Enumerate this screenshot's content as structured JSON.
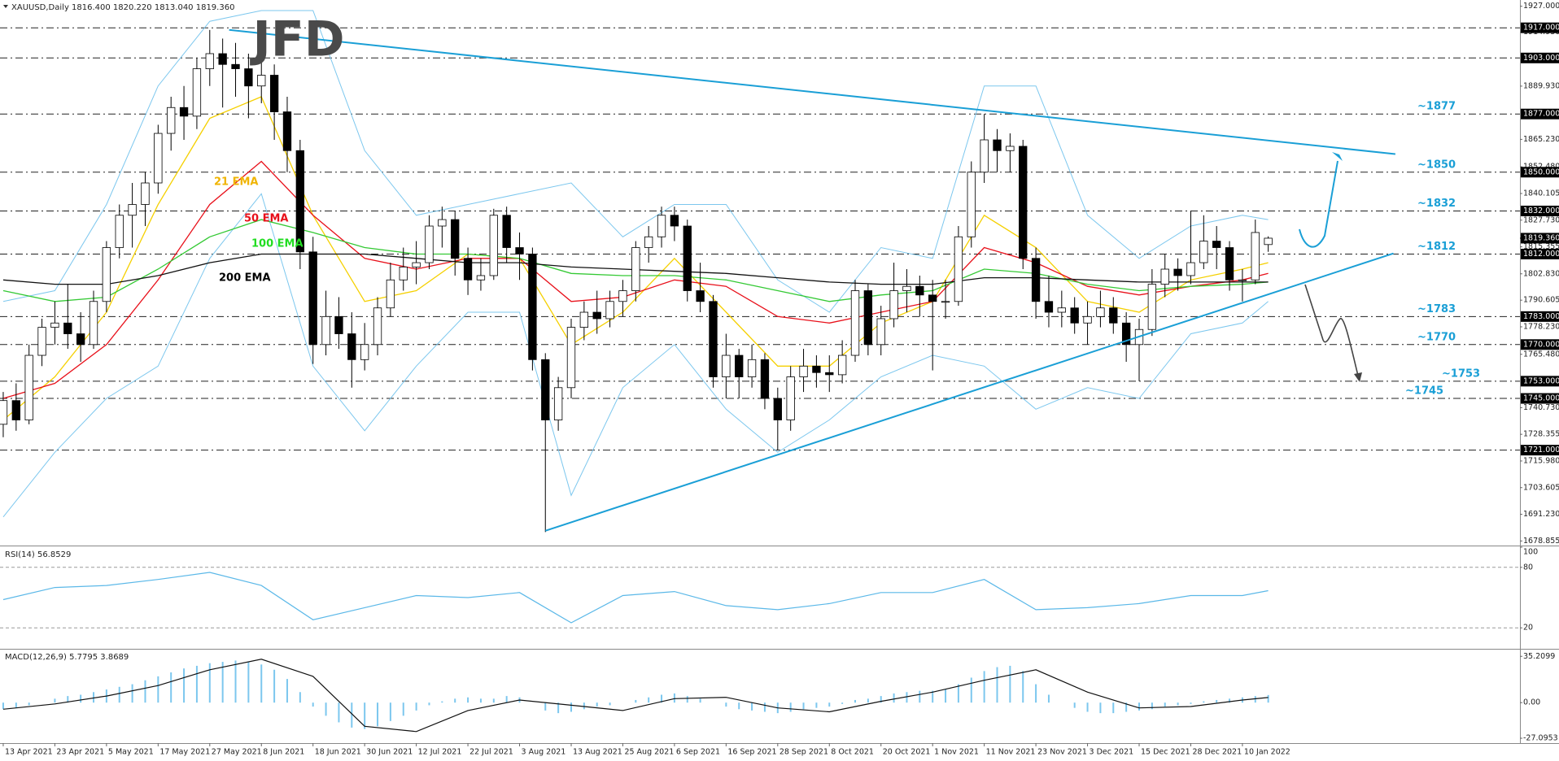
{
  "chart_data": {
    "type": "candlestick",
    "title": "XAUUSD,Daily  1816.400 1820.220 1813.040 1819.360",
    "watermark": "JFD",
    "up_color": "#ffffff",
    "down_color": "#000000",
    "xlim": [
      -0.5,
      235
    ],
    "xticks": [
      {
        "value": 0,
        "label": "13 Apr 2021"
      },
      {
        "value": 8,
        "label": "23 Apr 2021"
      },
      {
        "value": 16,
        "label": "5 May 2021"
      },
      {
        "value": 24,
        "label": "17 May 2021"
      },
      {
        "value": 32,
        "label": "27 May 2021"
      },
      {
        "value": 40,
        "label": "8 Jun 2021"
      },
      {
        "value": 48,
        "label": "18 Jun 2021"
      },
      {
        "value": 56,
        "label": "30 Jun 2021"
      },
      {
        "value": 64,
        "label": "12 Jul 2021"
      },
      {
        "value": 72,
        "label": "22 Jul 2021"
      },
      {
        "value": 80,
        "label": "3 Aug 2021"
      },
      {
        "value": 88,
        "label": "13 Aug 2021"
      },
      {
        "value": 96,
        "label": "25 Aug 2021"
      },
      {
        "value": 104,
        "label": "6 Sep 2021"
      },
      {
        "value": 112,
        "label": "16 Sep 2021"
      },
      {
        "value": 120,
        "label": "28 Sep 2021"
      },
      {
        "value": 128,
        "label": "8 Oct 2021"
      },
      {
        "value": 136,
        "label": "20 Oct 2021"
      },
      {
        "value": 144,
        "label": "1 Nov 2021"
      },
      {
        "value": 152,
        "label": "11 Nov 2021"
      },
      {
        "value": 160,
        "label": "23 Nov 2021"
      },
      {
        "value": 168,
        "label": "3 Dec 2021"
      },
      {
        "value": 176,
        "label": "15 Dec 2021"
      },
      {
        "value": 184,
        "label": "28 Dec 2021"
      },
      {
        "value": 192,
        "label": "10 Jan 2022"
      }
    ],
    "ylim": [
      1677.1,
      1929.9
    ],
    "yticks": [
      {
        "value": 1927,
        "label": "1927.000"
      },
      {
        "value": 1914.93,
        "label": "1914.930"
      },
      {
        "value": 1889.93,
        "label": "1889.930"
      },
      {
        "value": 1865.23,
        "label": "1865.230"
      },
      {
        "value": 1852.48,
        "label": "1852.480"
      },
      1840.105,
      {
        "value": 1827.73,
        "label": "1827.730"
      },
      1815.355,
      {
        "value": 1802.83,
        "label": "1802.830"
      },
      1790.605,
      {
        "value": 1778.23,
        "label": "1778.230"
      },
      {
        "value": 1765.48,
        "label": "1765.480"
      },
      {
        "value": 1740.73,
        "label": "1740.730"
      },
      1728.355,
      {
        "value": 1715.98,
        "label": "1715.980"
      },
      1703.605,
      {
        "value": 1691.23,
        "label": "1691.230"
      },
      1678.855
    ],
    "levels": [
      {
        "value": 1917,
        "label": "1917.000"
      },
      {
        "value": 1903,
        "label": "1903.000"
      },
      {
        "value": 1877,
        "label": "1877.000",
        "note": "~1877"
      },
      {
        "value": 1850,
        "label": "1850.000",
        "note": "~1850"
      },
      {
        "value": 1832,
        "label": "1832.000",
        "note": "~1832"
      },
      {
        "value": 1812,
        "label": "1812.000",
        "note": "~1812"
      },
      {
        "value": 1783,
        "label": "1783.000",
        "note": "~1783"
      },
      {
        "value": 1770,
        "label": "1770.000",
        "note": "~1770"
      },
      {
        "value": 1753,
        "label": "1753.000",
        "note": "~1753"
      },
      {
        "value": 1745,
        "label": "1745.000",
        "note": "~1745"
      },
      {
        "value": 1721,
        "label": "1721.000"
      }
    ],
    "current_price": {
      "value": 1819.36,
      "label": "1819.360"
    },
    "x": [
      0,
      2,
      4,
      6,
      8,
      10,
      12,
      14,
      16,
      18,
      20,
      22,
      24,
      26,
      28,
      30,
      32,
      34,
      36,
      38,
      40,
      42,
      44,
      46,
      48,
      50,
      52,
      54,
      56,
      58,
      60,
      62,
      64,
      66,
      68,
      70,
      72,
      74,
      76,
      78,
      80,
      82,
      84,
      86,
      88,
      90,
      92,
      94,
      96,
      98,
      100,
      102,
      104,
      106,
      108,
      110,
      112,
      114,
      116,
      118,
      120,
      122,
      124,
      126,
      128,
      130,
      132,
      134,
      136,
      138,
      140,
      142,
      144,
      146,
      148,
      150,
      152,
      154,
      156,
      158,
      160,
      162,
      164,
      166,
      168,
      170,
      172,
      174,
      176,
      178,
      180,
      182,
      184,
      186,
      188,
      190,
      192,
      194,
      196
    ],
    "candles": [
      [
        1733,
        1748,
        1727,
        1744
      ],
      [
        1744,
        1752,
        1730,
        1735
      ],
      [
        1735,
        1770,
        1733,
        1765
      ],
      [
        1765,
        1782,
        1760,
        1778
      ],
      [
        1778,
        1790,
        1770,
        1780
      ],
      [
        1780,
        1798,
        1768,
        1775
      ],
      [
        1775,
        1785,
        1762,
        1770
      ],
      [
        1770,
        1795,
        1768,
        1790
      ],
      [
        1790,
        1818,
        1785,
        1815
      ],
      [
        1815,
        1835,
        1810,
        1830
      ],
      [
        1830,
        1845,
        1815,
        1835
      ],
      [
        1835,
        1850,
        1825,
        1845
      ],
      [
        1845,
        1872,
        1840,
        1868
      ],
      [
        1868,
        1885,
        1860,
        1880
      ],
      [
        1880,
        1890,
        1865,
        1876
      ],
      [
        1876,
        1903,
        1870,
        1898
      ],
      [
        1898,
        1916,
        1890,
        1905
      ],
      [
        1905,
        1912,
        1880,
        1900
      ],
      [
        1900,
        1910,
        1885,
        1898
      ],
      [
        1898,
        1905,
        1875,
        1890
      ],
      [
        1890,
        1903,
        1882,
        1895
      ],
      [
        1895,
        1900,
        1865,
        1878
      ],
      [
        1878,
        1885,
        1850,
        1860
      ],
      [
        1860,
        1865,
        1805,
        1813
      ],
      [
        1813,
        1820,
        1761,
        1770
      ],
      [
        1770,
        1795,
        1765,
        1783
      ],
      [
        1783,
        1792,
        1768,
        1775
      ],
      [
        1775,
        1785,
        1750,
        1763
      ],
      [
        1763,
        1780,
        1758,
        1770
      ],
      [
        1770,
        1792,
        1765,
        1787
      ],
      [
        1787,
        1808,
        1783,
        1800
      ],
      [
        1800,
        1815,
        1795,
        1806
      ],
      [
        1806,
        1818,
        1798,
        1808
      ],
      [
        1808,
        1830,
        1805,
        1825
      ],
      [
        1825,
        1834,
        1815,
        1828
      ],
      [
        1828,
        1832,
        1802,
        1810
      ],
      [
        1810,
        1815,
        1793,
        1800
      ],
      [
        1800,
        1810,
        1795,
        1802
      ],
      [
        1802,
        1833,
        1800,
        1830
      ],
      [
        1830,
        1834,
        1808,
        1815
      ],
      [
        1815,
        1822,
        1800,
        1812
      ],
      [
        1812,
        1815,
        1758,
        1763
      ],
      [
        1763,
        1766,
        1683,
        1735
      ],
      [
        1735,
        1755,
        1730,
        1750
      ],
      [
        1750,
        1782,
        1745,
        1778
      ],
      [
        1778,
        1790,
        1772,
        1785
      ],
      [
        1785,
        1795,
        1775,
        1782
      ],
      [
        1782,
        1795,
        1778,
        1790
      ],
      [
        1790,
        1800,
        1783,
        1795
      ],
      [
        1795,
        1818,
        1790,
        1815
      ],
      [
        1815,
        1825,
        1808,
        1820
      ],
      [
        1820,
        1834,
        1815,
        1830
      ],
      [
        1830,
        1834,
        1818,
        1825
      ],
      [
        1825,
        1828,
        1790,
        1795
      ],
      [
        1795,
        1808,
        1785,
        1790
      ],
      [
        1790,
        1793,
        1750,
        1755
      ],
      [
        1755,
        1775,
        1745,
        1765
      ],
      [
        1765,
        1768,
        1745,
        1755
      ],
      [
        1755,
        1770,
        1750,
        1763
      ],
      [
        1763,
        1766,
        1740,
        1745
      ],
      [
        1745,
        1750,
        1721,
        1735
      ],
      [
        1735,
        1760,
        1730,
        1755
      ],
      [
        1755,
        1768,
        1748,
        1760
      ],
      [
        1760,
        1765,
        1750,
        1757
      ],
      [
        1757,
        1765,
        1748,
        1756
      ],
      [
        1756,
        1772,
        1752,
        1765
      ],
      [
        1765,
        1800,
        1762,
        1795
      ],
      [
        1795,
        1798,
        1765,
        1770
      ],
      [
        1770,
        1788,
        1765,
        1782
      ],
      [
        1782,
        1808,
        1778,
        1795
      ],
      [
        1795,
        1805,
        1785,
        1797
      ],
      [
        1797,
        1802,
        1783,
        1793
      ],
      [
        1793,
        1800,
        1758,
        1790
      ],
      [
        1790,
        1800,
        1782,
        1790
      ],
      [
        1790,
        1825,
        1788,
        1820
      ],
      [
        1820,
        1855,
        1815,
        1850
      ],
      [
        1850,
        1877,
        1845,
        1865
      ],
      [
        1865,
        1870,
        1850,
        1860
      ],
      [
        1860,
        1868,
        1850,
        1862
      ],
      [
        1862,
        1865,
        1805,
        1810
      ],
      [
        1810,
        1815,
        1782,
        1790
      ],
      [
        1790,
        1802,
        1778,
        1785
      ],
      [
        1785,
        1795,
        1778,
        1787
      ],
      [
        1787,
        1792,
        1775,
        1780
      ],
      [
        1780,
        1790,
        1770,
        1783
      ],
      [
        1783,
        1795,
        1778,
        1787
      ],
      [
        1787,
        1792,
        1775,
        1780
      ],
      [
        1780,
        1785,
        1762,
        1770
      ],
      [
        1770,
        1782,
        1753,
        1777
      ],
      [
        1777,
        1805,
        1774,
        1798
      ],
      [
        1798,
        1812,
        1792,
        1805
      ],
      [
        1805,
        1810,
        1795,
        1802
      ],
      [
        1802,
        1832,
        1798,
        1808
      ],
      [
        1808,
        1830,
        1805,
        1818
      ],
      [
        1818,
        1825,
        1805,
        1815
      ],
      [
        1815,
        1818,
        1795,
        1800
      ],
      [
        1800,
        1805,
        1790,
        1800
      ],
      [
        1800,
        1828,
        1798,
        1822
      ],
      [
        1816.4,
        1820.22,
        1813.04,
        1819.36
      ]
    ],
    "overlays": {
      "x": [
        0,
        8,
        16,
        24,
        32,
        40,
        48,
        56,
        64,
        72,
        80,
        88,
        96,
        104,
        112,
        120,
        128,
        136,
        144,
        152,
        160,
        168,
        176,
        184,
        192,
        196
      ],
      "series": [
        {
          "name": "21 EMA",
          "color": "#f5d000",
          "label_color": "#f0b400",
          "values": [
            1735,
            1755,
            1785,
            1835,
            1875,
            1885,
            1830,
            1790,
            1795,
            1812,
            1810,
            1770,
            1785,
            1810,
            1785,
            1760,
            1760,
            1780,
            1790,
            1830,
            1815,
            1790,
            1785,
            1800,
            1805,
            1808
          ]
        },
        {
          "name": "50 EMA",
          "color": "#e8101a",
          "label_color": "#e8101a",
          "values": [
            1745,
            1752,
            1770,
            1800,
            1835,
            1855,
            1830,
            1810,
            1805,
            1810,
            1810,
            1790,
            1792,
            1800,
            1797,
            1783,
            1780,
            1785,
            1790,
            1815,
            1808,
            1797,
            1793,
            1797,
            1800,
            1803
          ]
        },
        {
          "name": "100 EMA",
          "color": "#34c934",
          "label_color": "#22dd22",
          "values": [
            1795,
            1790,
            1792,
            1805,
            1820,
            1828,
            1822,
            1815,
            1812,
            1812,
            1810,
            1803,
            1802,
            1802,
            1800,
            1795,
            1790,
            1793,
            1795,
            1805,
            1803,
            1798,
            1795,
            1797,
            1798,
            1799
          ]
        },
        {
          "name": "200 EMA",
          "color": "#111111",
          "label_color": "#000000",
          "values": [
            1800,
            1798,
            1798,
            1802,
            1808,
            1812,
            1812,
            1812,
            1810,
            1808,
            1808,
            1806,
            1805,
            1804,
            1803,
            1801,
            1799,
            1798,
            1798,
            1801,
            1801,
            1800,
            1799,
            1799,
            1799,
            1799
          ]
        }
      ],
      "bands": {
        "color": "#7cc7ee",
        "upper": [
          1790,
          1795,
          1835,
          1890,
          1920,
          1925,
          1925,
          1860,
          1830,
          1835,
          1840,
          1845,
          1820,
          1835,
          1835,
          1800,
          1785,
          1815,
          1810,
          1890,
          1890,
          1830,
          1810,
          1825,
          1830,
          1828
        ],
        "lower": [
          1690,
          1720,
          1745,
          1760,
          1810,
          1840,
          1760,
          1730,
          1760,
          1785,
          1785,
          1700,
          1750,
          1770,
          1740,
          1720,
          1735,
          1755,
          1765,
          1760,
          1740,
          1750,
          1745,
          1775,
          1780,
          1790
        ]
      }
    },
    "trendlines": [
      {
        "color": "#1a9fd6",
        "x": [
          35,
          215.7
        ],
        "y": [
          1916,
          1858.4
        ]
      },
      {
        "color": "#1a9fd6",
        "x": [
          84,
          215.4
        ],
        "y": [
          1683.6,
          1812.3
        ]
      }
    ],
    "rsi": {
      "title": "RSI(14) 56.8529",
      "color": "#5bb8e8",
      "ylim": [
        0,
        100
      ],
      "yticks": [
        100,
        80,
        20
      ],
      "levels": [
        80,
        20
      ],
      "values": [
        48,
        60,
        62,
        68,
        75,
        62,
        28,
        40,
        52,
        50,
        55,
        25,
        52,
        56,
        42,
        38,
        44,
        55,
        55,
        68,
        38,
        40,
        44,
        52,
        52,
        56.8529
      ]
    },
    "macd": {
      "title": "MACD(12,26,9) 5.7795 3.8689",
      "ylim": [
        -30.8,
        39.7
      ],
      "yticks": [
        35.2099,
        {
          "value": 0,
          "label": "0.00"
        },
        -27.0953
      ],
      "histogram_color": "#7cc7ee",
      "signal_color": "#111111",
      "histogram": [
        -5,
        -4,
        -2,
        0,
        3,
        5,
        6,
        8,
        10,
        12,
        14,
        17,
        20,
        23,
        26,
        28,
        30,
        31,
        32,
        31,
        29,
        25,
        18,
        8,
        -3,
        -10,
        -15,
        -19,
        -20,
        -18,
        -14,
        -10,
        -6,
        -2,
        1,
        3,
        4,
        3,
        3,
        5,
        4,
        0,
        -6,
        -8,
        -7,
        -5,
        -3,
        -2,
        0,
        2,
        4,
        6,
        7,
        5,
        3,
        0,
        -3,
        -5,
        -6,
        -7,
        -8,
        -7,
        -5,
        -4,
        -3,
        -1,
        2,
        3,
        5,
        7,
        8,
        9,
        9,
        10,
        14,
        19,
        24,
        27,
        28,
        24,
        14,
        6,
        0,
        -4,
        -7,
        -8,
        -8,
        -7,
        -6,
        -5,
        -3,
        -2,
        -1,
        1,
        2,
        3,
        4,
        5,
        5.7795
      ],
      "signal": [
        -5,
        -1,
        5,
        13,
        25,
        33,
        20,
        -18,
        -22,
        -6,
        2,
        -2,
        -6,
        3,
        4,
        -4,
        -7,
        1,
        8,
        17,
        25,
        8,
        -4,
        -3,
        2,
        3.8689
      ]
    }
  }
}
